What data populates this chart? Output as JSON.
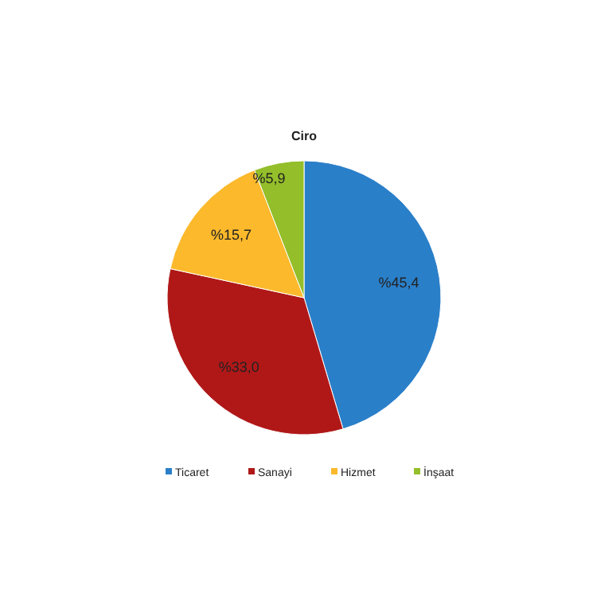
{
  "chart_data": {
    "type": "pie",
    "title": "Ciro",
    "categories": [
      "Ticaret",
      "Sanayi",
      "Hizmet",
      "İnşaat"
    ],
    "values": [
      45.4,
      33.0,
      15.7,
      5.9
    ],
    "colors": [
      "#2a7fc9",
      "#b01818",
      "#fbb92b",
      "#94be2a"
    ],
    "value_labels": [
      "%45,4",
      "%33,0",
      "%15,7",
      "%5,9"
    ],
    "legend": "bottom"
  }
}
